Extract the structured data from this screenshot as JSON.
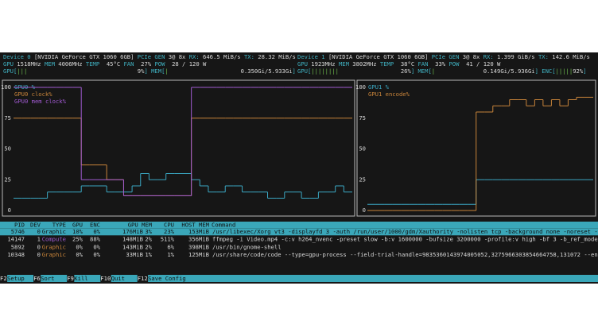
{
  "status_lines": [
    [
      [
        "Device 0",
        "#3fb0c0"
      ],
      [
        " [NVIDIA GeForce GTX 1060 6GB] ",
        "#d8d8d8"
      ],
      [
        "PCIe GEN",
        "#3fb0c0"
      ],
      [
        " 3@ 8x ",
        "#d8d8d8"
      ],
      [
        "RX:",
        "#3fb0c0"
      ],
      [
        " 646.5 MiB/s ",
        "#d8d8d8"
      ],
      [
        "TX:",
        "#3fb0c0"
      ],
      [
        " 28.32 MiB/s",
        "#d8d8d8"
      ]
    ],
    [
      [
        "GPU",
        "#3fb0c0"
      ],
      [
        " 1518MHz ",
        "#d8d8d8"
      ],
      [
        "MEM",
        "#3fb0c0"
      ],
      [
        " 4006MHz ",
        "#d8d8d8"
      ],
      [
        "TEMP",
        "#3fb0c0"
      ],
      [
        "  45°C ",
        "#d8d8d8"
      ],
      [
        "FAN",
        "#3fb0c0"
      ],
      [
        "  27% ",
        "#d8d8d8"
      ],
      [
        "POW",
        "#3fb0c0"
      ],
      [
        "  28 / 120 W",
        "#d8d8d8"
      ]
    ],
    [
      [
        "GPU[",
        "#3fb0c0"
      ],
      [
        "|||",
        "#6fbf4f"
      ],
      [
        "                                9%",
        "#d8d8d8"
      ],
      [
        "]",
        "#3fb0c0"
      ],
      [
        " MEM[",
        "#3fb0c0"
      ],
      [
        "|",
        "#6fbf4f"
      ],
      [
        "                     0.350Gi/5.933Gi",
        "#d8d8d8"
      ],
      [
        "]",
        "#3fb0c0"
      ]
    ],
    [
      [
        "Device 1",
        "#3fb0c0"
      ],
      [
        " [NVIDIA GeForce GTX 1060 6GB] ",
        "#d8d8d8"
      ],
      [
        "PCIe GEN",
        "#3fb0c0"
      ],
      [
        " 3@ 8x ",
        "#d8d8d8"
      ],
      [
        "RX:",
        "#3fb0c0"
      ],
      [
        " 1.399 GiB/s ",
        "#d8d8d8"
      ],
      [
        "TX:",
        "#3fb0c0"
      ],
      [
        " 142.6 MiB/s",
        "#d8d8d8"
      ]
    ],
    [
      [
        "GPU",
        "#3fb0c0"
      ],
      [
        " 1923MHz ",
        "#d8d8d8"
      ],
      [
        "MEM",
        "#3fb0c0"
      ],
      [
        " 3802MHz ",
        "#d8d8d8"
      ],
      [
        "TEMP",
        "#3fb0c0"
      ],
      [
        "  38°C ",
        "#d8d8d8"
      ],
      [
        "FAN",
        "#3fb0c0"
      ],
      [
        "  33% ",
        "#d8d8d8"
      ],
      [
        "POW",
        "#3fb0c0"
      ],
      [
        "  41 / 120 W",
        "#d8d8d8"
      ]
    ],
    [
      [
        "GPU[",
        "#3fb0c0"
      ],
      [
        "||||||||",
        "#6fbf4f"
      ],
      [
        "                  26%",
        "#d8d8d8"
      ],
      [
        "]",
        "#3fb0c0"
      ],
      [
        " MEM[",
        "#3fb0c0"
      ],
      [
        "|",
        "#6fbf4f"
      ],
      [
        "              0.149Gi/5.936Gi",
        "#d8d8d8"
      ],
      [
        "]",
        "#3fb0c0"
      ],
      [
        " ENC[",
        "#3fb0c0"
      ],
      [
        "|||||",
        "#6fbf4f"
      ],
      [
        "92%",
        "#d8d8d8"
      ],
      [
        "]",
        "#3fb0c0"
      ]
    ]
  ],
  "chart_data": [
    {
      "type": "step",
      "ylim": [
        0,
        100
      ],
      "yticks": [
        0,
        25,
        50,
        75,
        100
      ],
      "series": [
        {
          "name": "GPU0 %",
          "color": "#3aa7c2",
          "values": [
            10,
            10,
            10,
            10,
            15,
            15,
            15,
            15,
            20,
            20,
            20,
            15,
            15,
            15,
            20,
            30,
            25,
            25,
            30,
            30,
            30,
            25,
            20,
            15,
            15,
            20,
            20,
            15,
            15,
            15,
            10,
            10,
            15,
            15,
            10,
            10,
            15,
            15,
            20,
            15
          ]
        },
        {
          "name": "GPU0 clock%",
          "color": "#c8843a",
          "values": [
            75,
            75,
            75,
            75,
            75,
            75,
            75,
            75,
            37,
            37,
            37,
            25,
            25,
            12,
            12,
            12,
            12,
            12,
            12,
            12,
            12,
            75,
            75,
            75,
            75,
            75,
            75,
            75,
            75,
            75,
            75,
            75,
            75,
            75,
            75,
            75,
            75,
            75,
            75,
            75
          ]
        },
        {
          "name": "GPU0 mem clock%",
          "color": "#a05ad0",
          "values": [
            100,
            100,
            100,
            100,
            100,
            100,
            100,
            100,
            25,
            25,
            25,
            25,
            25,
            12,
            12,
            12,
            12,
            12,
            12,
            12,
            12,
            100,
            100,
            100,
            100,
            100,
            100,
            100,
            100,
            100,
            100,
            100,
            100,
            100,
            100,
            100,
            100,
            100,
            100,
            100
          ]
        }
      ]
    },
    {
      "type": "step",
      "ylim": [
        0,
        100
      ],
      "yticks": [
        0,
        25,
        50,
        75,
        100
      ],
      "series": [
        {
          "name": "GPU1 %",
          "color": "#3aa7c2",
          "values": [
            5,
            5,
            5,
            5,
            5,
            5,
            5,
            5,
            5,
            5,
            5,
            5,
            5,
            25,
            25,
            25,
            25,
            25,
            25,
            25,
            25,
            25,
            25,
            25,
            25,
            25,
            25
          ]
        },
        {
          "name": "GPU1 encode%",
          "color": "#c8843a",
          "values": [
            0,
            0,
            0,
            0,
            0,
            0,
            0,
            0,
            0,
            0,
            0,
            0,
            0,
            80,
            80,
            85,
            85,
            90,
            90,
            85,
            90,
            85,
            90,
            85,
            90,
            92,
            92
          ]
        }
      ]
    }
  ],
  "processes": {
    "header": [
      "PID",
      "DEV",
      "TYPE",
      "GPU",
      "ENC",
      "GPU MEM",
      "CPU",
      "HOST MEM",
      "Command"
    ],
    "type_colors": {
      "Graphic": "#c8843a",
      "Compute": "#a05ad0"
    },
    "selected_row": 0,
    "rows": [
      [
        "5746",
        "0",
        "Graphic",
        "10%",
        "0%",
        "176MiB",
        "3%",
        "23%",
        "153MiB",
        "/usr/libexec/Xorg vt3 -displayfd 3 -auth /run/user/1000/gdm/Xauthority -nolisten tcp -background none -noreset -k"
      ],
      [
        "14147",
        "1",
        "Compute",
        "25%",
        "88%",
        "148MiB",
        "2%",
        "511%",
        "356MiB",
        "ffmpeg -i Video.mp4 -c:v h264_nvenc -preset slow -b:v 1600000 -bufsize 3200000 -profile:v high -bf 3 -b_ref_mode"
      ],
      [
        "5892",
        "0",
        "Graphic",
        "0%",
        "0%",
        "143MiB",
        "2%",
        "6%",
        "398MiB",
        "/usr/bin/gnome-shell"
      ],
      [
        "10348",
        "0",
        "Graphic",
        "0%",
        "0%",
        "33MiB",
        "1%",
        "1%",
        "125MiB",
        "/usr/share/code/code --type=gpu-process --field-trial-handle=9835360143974005052,3275966303854664758,131072 --ena"
      ]
    ]
  },
  "footer": [
    {
      "key": "F2",
      "label": "Setup"
    },
    {
      "key": "F6",
      "label": "Sort"
    },
    {
      "key": "F9",
      "label": "Kill"
    },
    {
      "key": "F10",
      "label": "Quit"
    },
    {
      "key": "F12",
      "label": "Save Config"
    }
  ]
}
